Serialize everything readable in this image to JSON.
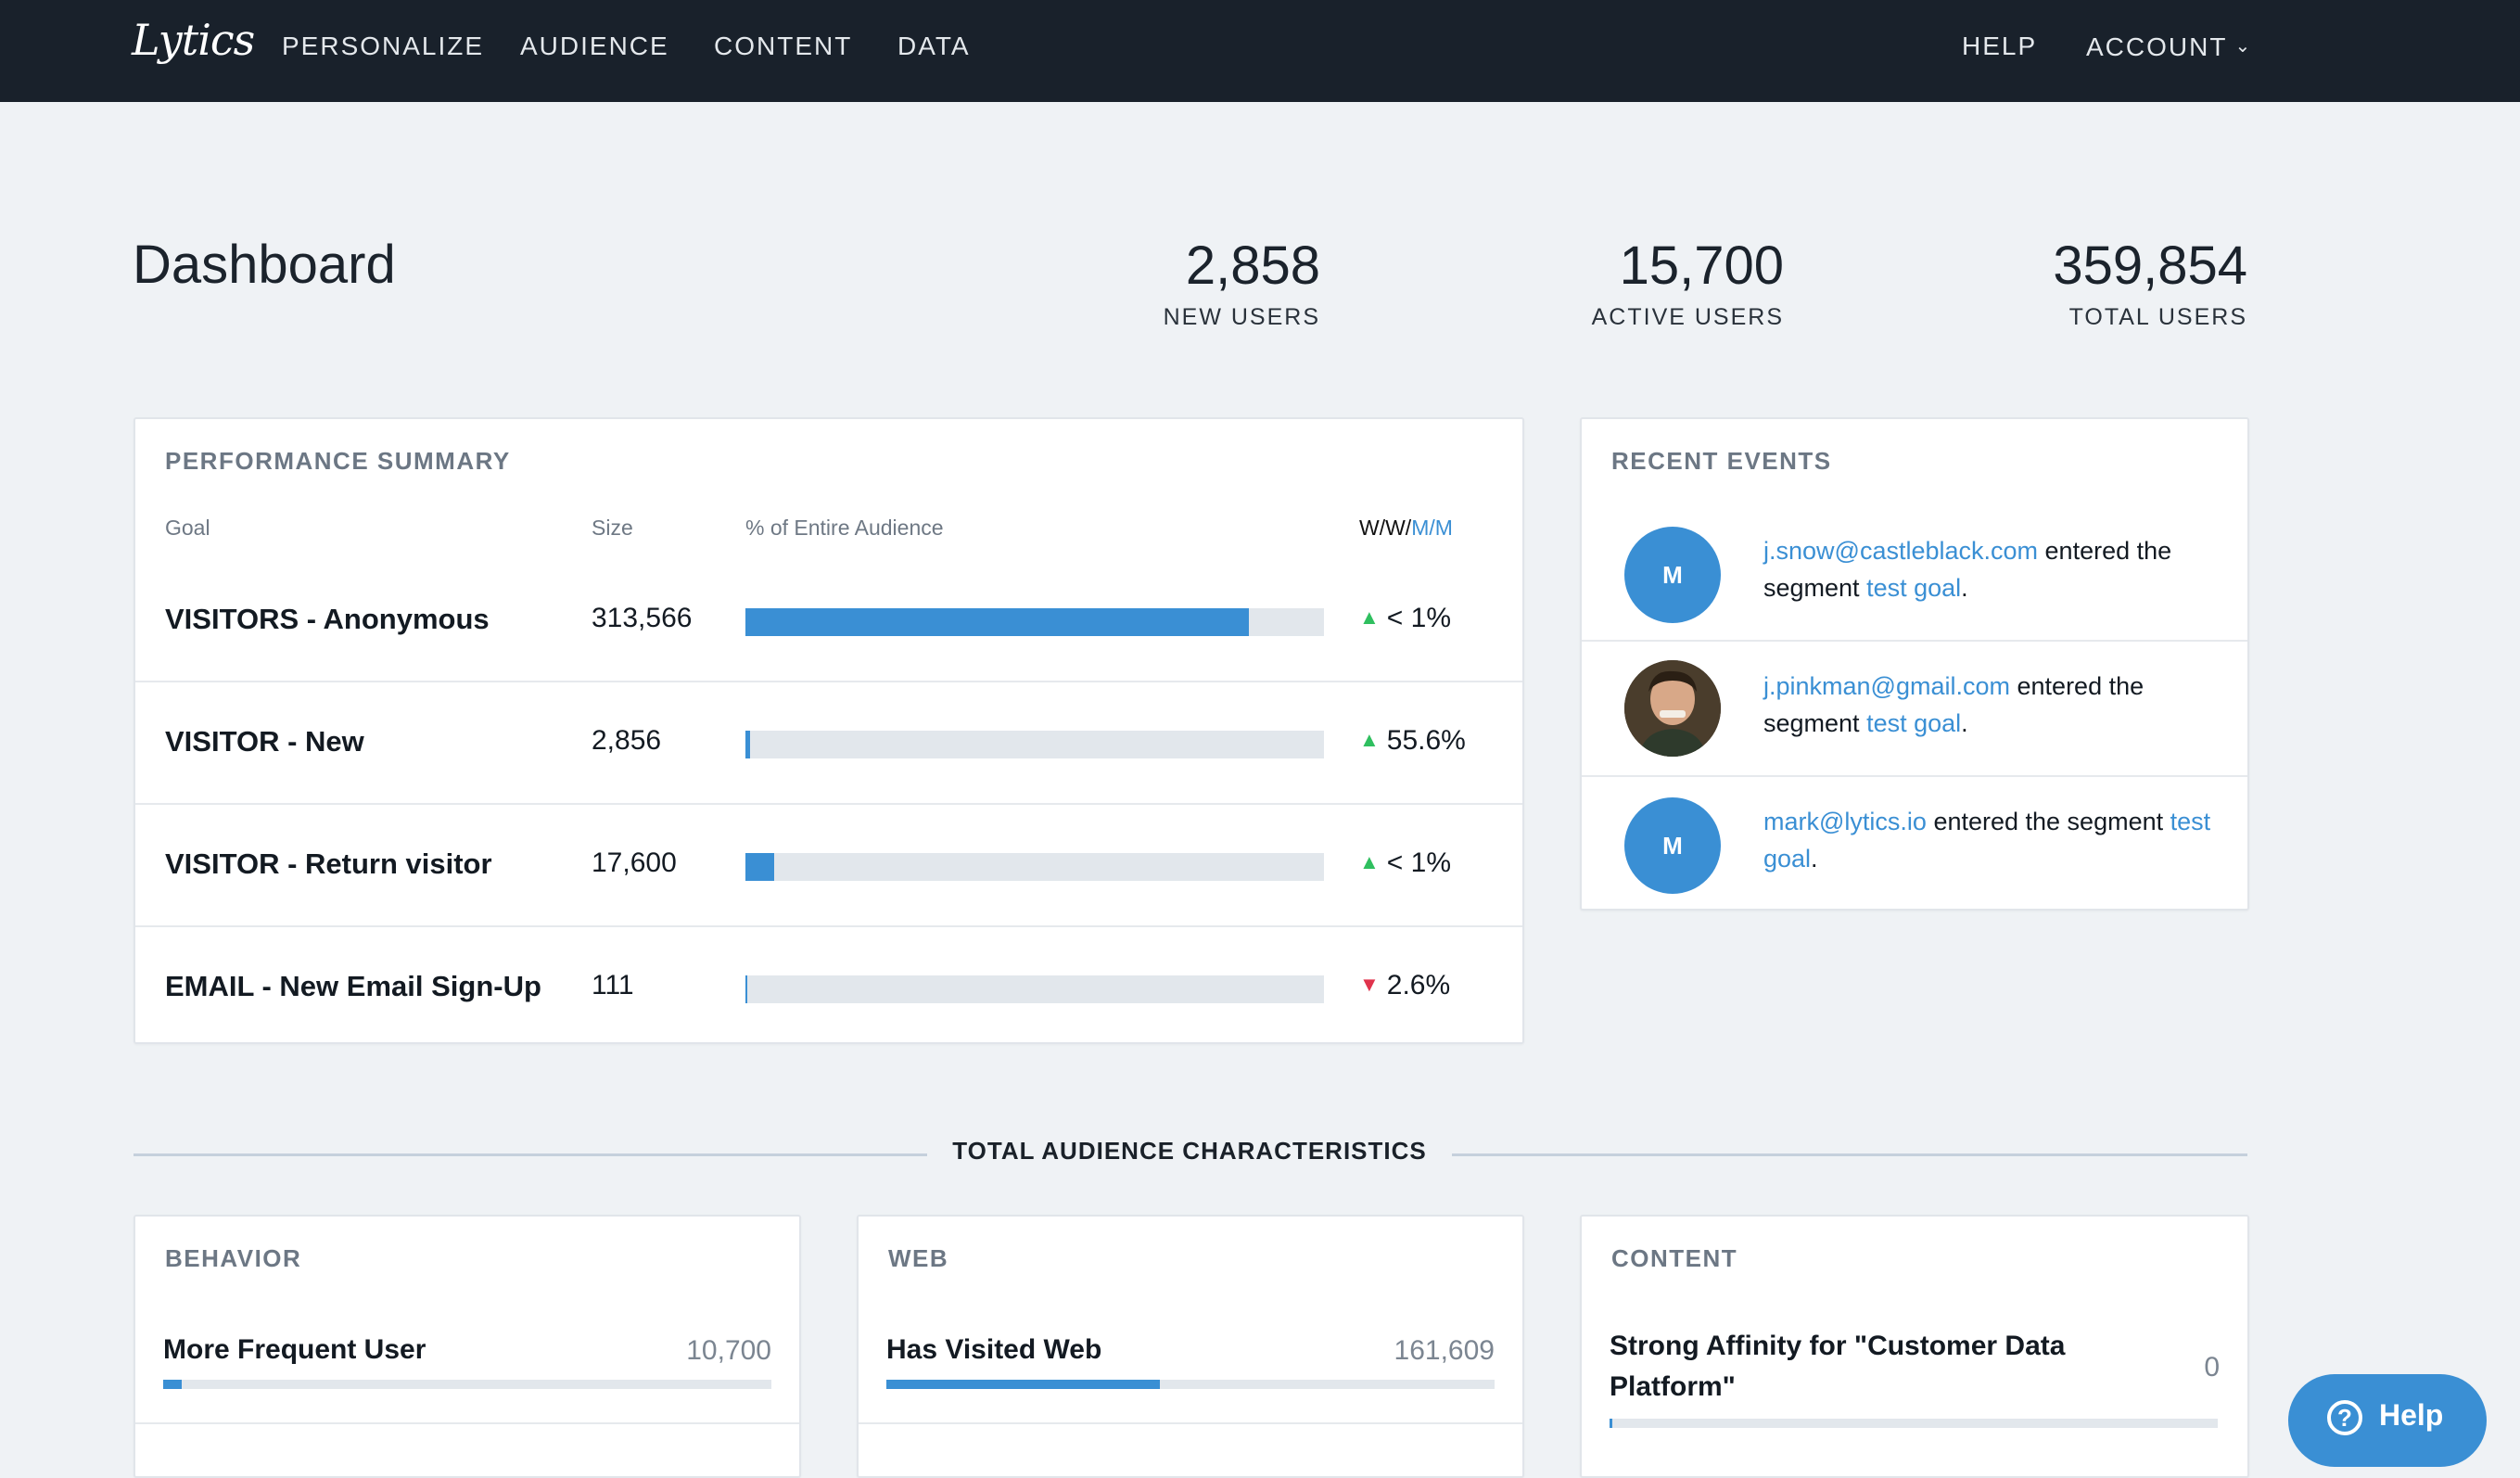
{
  "nav": {
    "logo": "Lytics",
    "items": [
      "PERSONALIZE",
      "AUDIENCE",
      "CONTENT",
      "DATA"
    ],
    "help": "HELP",
    "account": "ACCOUNT"
  },
  "header": {
    "title": "Dashboard",
    "stats": [
      {
        "value": "2,858",
        "label": "NEW USERS"
      },
      {
        "value": "15,700",
        "label": "ACTIVE USERS"
      },
      {
        "value": "359,854",
        "label": "TOTAL USERS"
      }
    ]
  },
  "performance": {
    "title": "PERFORMANCE SUMMARY",
    "columns": {
      "goal": "Goal",
      "size": "Size",
      "percent": "% of Entire Audience",
      "ww": "W/W/",
      "mm": "M/M"
    },
    "rows": [
      {
        "goal": "VISITORS - Anonymous",
        "size": "313,566",
        "fill_percent": 87,
        "direction": "up",
        "delta": "< 1%"
      },
      {
        "goal": "VISITOR - New",
        "size": "2,856",
        "fill_percent": 0.8,
        "direction": "up",
        "delta": "55.6%"
      },
      {
        "goal": "VISITOR - Return visitor",
        "size": "17,600",
        "fill_percent": 4.9,
        "direction": "up",
        "delta": "< 1%"
      },
      {
        "goal": "EMAIL - New Email Sign-Up",
        "size": "111",
        "fill_percent": 0.1,
        "direction": "down",
        "delta": "2.6%"
      }
    ]
  },
  "recent_events": {
    "title": "RECENT EVENTS",
    "events": [
      {
        "avatar": "M",
        "email": "j.snow@castleblack.com",
        "text1": "entered the segment",
        "segment": "test goal",
        "end": "."
      },
      {
        "avatar": "photo",
        "email": "j.pinkman@gmail.com",
        "text1": "entered the segment",
        "segment": "test goal",
        "end": "."
      },
      {
        "avatar": "M",
        "email": "mark@lytics.io",
        "text1": "entered the segment",
        "segment": "test goal",
        "end": "."
      }
    ]
  },
  "characteristics": {
    "title": "TOTAL AUDIENCE CHARACTERISTICS",
    "cards": [
      {
        "title": "BEHAVIOR",
        "item": "More Frequent User",
        "count": "10,700",
        "fill_percent": 3
      },
      {
        "title": "WEB",
        "item": "Has Visited Web",
        "count": "161,609",
        "fill_percent": 45
      },
      {
        "title": "CONTENT",
        "item": "Strong Affinity for \"Customer Data Platform\"",
        "count": "0",
        "fill_percent": 0
      }
    ]
  },
  "help_button": {
    "icon": "?",
    "label": "Help"
  }
}
